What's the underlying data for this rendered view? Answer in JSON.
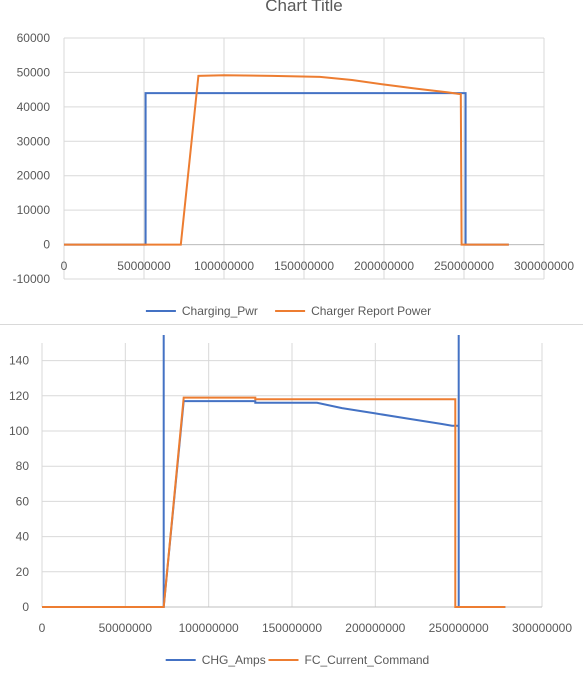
{
  "colors": {
    "blue": "#4472c4",
    "orange": "#ed7d31",
    "grid": "#d9d9d9",
    "text": "#595959"
  },
  "chart_data": [
    {
      "type": "line",
      "title": "Chart Title",
      "xlim": [
        0,
        300000000
      ],
      "ylim": [
        -10000,
        60000
      ],
      "x_ticks": [
        0,
        50000000,
        100000000,
        150000000,
        200000000,
        250000000,
        300000000
      ],
      "x_tick_labels": [
        "0",
        "50000000",
        "100000000",
        "150000000",
        "200000000",
        "250000000",
        "300000000"
      ],
      "y_ticks": [
        -10000,
        0,
        10000,
        20000,
        30000,
        40000,
        50000,
        60000
      ],
      "y_tick_labels": [
        "-10000",
        "0",
        "10000",
        "20000",
        "30000",
        "40000",
        "50000",
        "60000"
      ],
      "grid": true,
      "legend_position": "bottom",
      "series": [
        {
          "name": "Charging_Pwr",
          "color": "#4472c4",
          "x": [
            0,
            51000000,
            51000000,
            251000000,
            251000000,
            278000000
          ],
          "y": [
            0,
            0,
            44000,
            44000,
            0,
            0
          ]
        },
        {
          "name": "Charger Report Power",
          "color": "#ed7d31",
          "x": [
            0,
            73000000,
            84000000,
            100000000,
            130000000,
            160000000,
            180000000,
            200000000,
            220000000,
            240000000,
            246000000,
            248000000,
            248500000,
            278000000
          ],
          "y": [
            0,
            0,
            49000,
            49200,
            49000,
            48700,
            47800,
            46500,
            45300,
            44200,
            43800,
            43700,
            0,
            0
          ]
        }
      ]
    },
    {
      "type": "line",
      "title": "",
      "xlim": [
        0,
        300000000
      ],
      "ylim": [
        0,
        150
      ],
      "x_ticks": [
        0,
        50000000,
        100000000,
        150000000,
        200000000,
        250000000,
        300000000
      ],
      "x_tick_labels": [
        "0",
        "50000000",
        "100000000",
        "150000000",
        "200000000",
        "250000000",
        "300000000"
      ],
      "y_ticks": [
        0,
        20,
        40,
        60,
        80,
        100,
        120,
        140
      ],
      "y_tick_labels": [
        "0",
        "20",
        "40",
        "60",
        "80",
        "100",
        "120",
        "140"
      ],
      "grid": true,
      "legend_position": "bottom",
      "series": [
        {
          "name": "CHG_Amps",
          "color": "#4472c4",
          "x": [
            0,
            73000000,
            73000000,
            73000000,
            85000000,
            128000000,
            128000000,
            165000000,
            180000000,
            200000000,
            220000000,
            240000000,
            246000000,
            250000000,
            250000000,
            250000000,
            278000000
          ],
          "y": [
            0,
            0,
            160,
            0,
            117,
            117,
            116,
            116,
            113,
            110,
            107,
            104,
            103,
            103,
            160,
            0,
            0
          ]
        },
        {
          "name": "FC_Current_Command",
          "color": "#ed7d31",
          "x": [
            0,
            73000000,
            85000000,
            128000000,
            128000000,
            248000000,
            248000000,
            278000000
          ],
          "y": [
            0,
            0,
            119,
            119,
            118,
            118,
            0,
            0
          ]
        }
      ]
    }
  ]
}
